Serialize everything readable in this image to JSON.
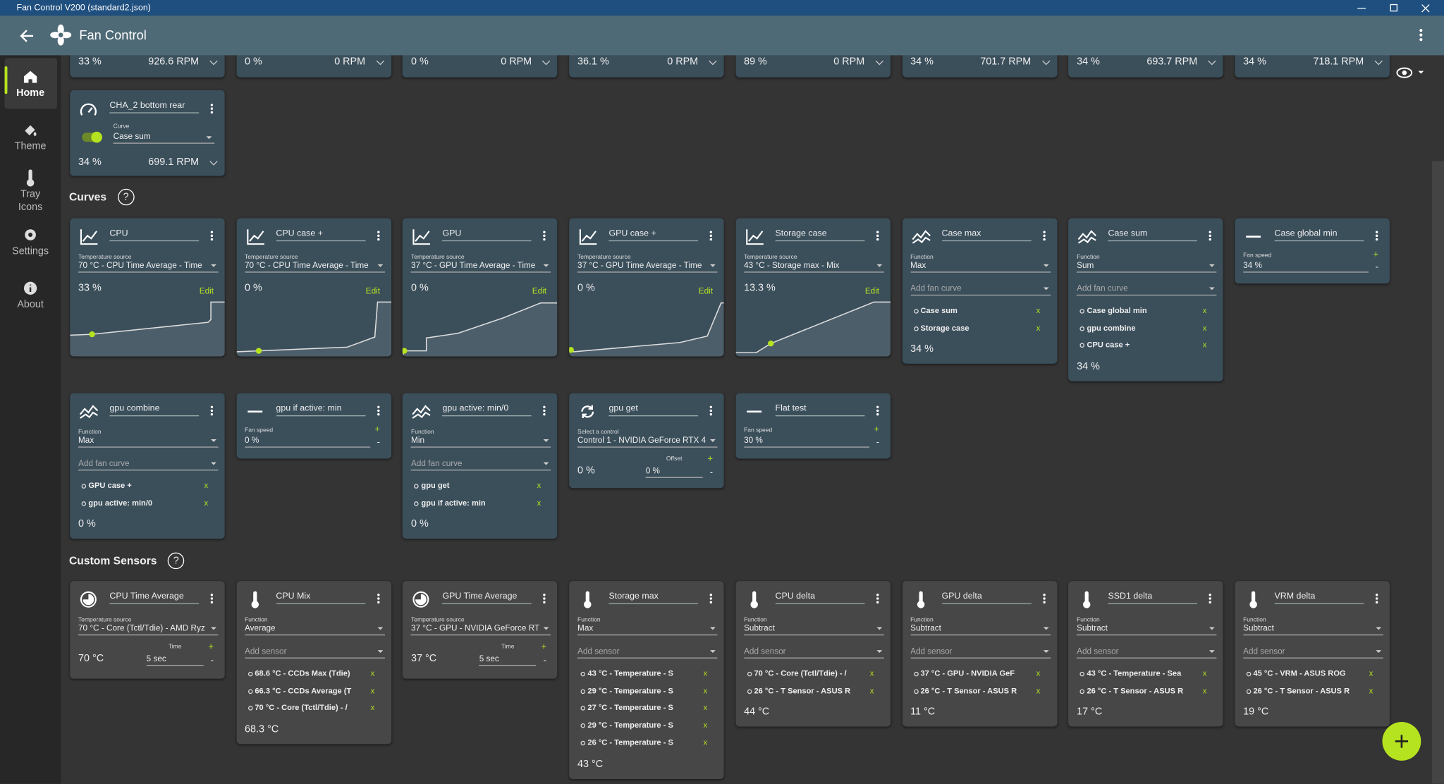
{
  "window": {
    "title": "Fan Control V200 (standard2.json)"
  },
  "header": {
    "title": "Fan Control"
  },
  "nav": {
    "items": [
      "Home",
      "Theme",
      "Tray Icons",
      "Settings",
      "About"
    ]
  },
  "symbols": {
    "help": "?",
    "remove": "x",
    "plus": "+",
    "minus": "-"
  },
  "home": {
    "fans": [
      {
        "percent": "33 %",
        "rpm": "926.6 RPM"
      },
      {
        "percent": "0 %",
        "rpm": "0 RPM"
      },
      {
        "percent": "0 %",
        "rpm": "0 RPM"
      },
      {
        "percent": "36.1 %",
        "rpm": "0 RPM"
      },
      {
        "percent": "89 %",
        "rpm": "0 RPM"
      },
      {
        "percent": "34 %",
        "rpm": "701.7 RPM"
      },
      {
        "percent": "34 %",
        "rpm": "693.7 RPM"
      },
      {
        "percent": "34 %",
        "rpm": "718.1 RPM"
      }
    ],
    "control": {
      "name": "CHA_2 bottom rear",
      "label": "Curve",
      "value": "Case sum",
      "percent": "34 %",
      "rpm": "699.1 RPM"
    }
  },
  "sections": [
    {
      "title": "Curves",
      "cards": [
        {
          "icon": "graph",
          "title": "CPU",
          "label": "Temperature source",
          "value": "70 °C - CPU Time Average - Time",
          "output": "33 %",
          "edit": "Edit"
        },
        {
          "icon": "graph",
          "title": "CPU case +",
          "label": "Temperature source",
          "value": "70 °C - CPU Time Average - Time",
          "output": "0 %",
          "edit": "Edit"
        },
        {
          "icon": "graph",
          "title": "GPU",
          "label": "Temperature source",
          "value": "37 °C - GPU Time Average - Time",
          "output": "0 %",
          "edit": "Edit"
        },
        {
          "icon": "graph",
          "title": "GPU case +",
          "label": "Temperature source",
          "value": "37 °C - GPU Time Average - Time",
          "output": "0 %",
          "edit": "Edit"
        },
        {
          "icon": "graph",
          "title": "Storage case",
          "label": "Temperature source",
          "value": "43 °C - Storage max - Mix",
          "output": "13.3 %",
          "edit": "Edit"
        },
        {
          "icon": "mix",
          "title": "Case max",
          "label": "Function",
          "value": "Max",
          "add": "Add fan curve",
          "items": [
            "Case sum",
            "Storage case"
          ],
          "output": "34 %"
        },
        {
          "icon": "mix",
          "title": "Case sum",
          "label": "Function",
          "value": "Sum",
          "add": "Add fan curve",
          "items": [
            "Case global min",
            "gpu combine",
            "CPU case +"
          ],
          "output": "34 %"
        },
        {
          "icon": "flat",
          "title": "Case global min",
          "label": "Fan speed",
          "value": "34 %"
        },
        {
          "icon": "mix",
          "title": "gpu combine",
          "label": "Function",
          "value": "Max",
          "add": "Add fan curve",
          "items": [
            "GPU case +",
            "gpu active: min/0"
          ],
          "output": "0 %"
        },
        {
          "icon": "flat",
          "title": "gpu if active: min",
          "label": "Fan speed",
          "value": "0 %"
        },
        {
          "icon": "mix",
          "title": "gpu active: min/0",
          "label": "Function",
          "value": "Min",
          "add": "Add fan curve",
          "items": [
            "gpu get",
            "gpu if active: min"
          ],
          "output": "0 %"
        },
        {
          "icon": "sync",
          "title": "gpu get",
          "label": "Select a control",
          "value": "Control 1 - NVIDIA GeForce RTX 4",
          "output": "0 %",
          "sub_label": "Offset",
          "sub_value": "0 %"
        },
        {
          "icon": "flat",
          "title": "Flat test",
          "label": "Fan speed",
          "value": "30 %"
        }
      ]
    },
    {
      "title": "Custom Sensors",
      "cards": [
        {
          "icon": "clock",
          "title": "CPU Time Average",
          "label": "Temperature source",
          "value": "70 °C - Core (Tctl/Tdie) - AMD Ryz",
          "output": "70 °C",
          "sub_label": "Time",
          "sub_value": "5 sec"
        },
        {
          "icon": "thermo",
          "title": "CPU Mix",
          "label": "Function",
          "value": "Average",
          "add": "Add sensor",
          "items": [
            "68.6 °C - CCDs Max (Tdie)",
            "66.3 °C - CCDs Average (T",
            "70 °C - Core (Tctl/Tdie) - /"
          ],
          "output": "68.3 °C"
        },
        {
          "icon": "clock",
          "title": "GPU Time Average",
          "label": "Temperature source",
          "value": "37 °C - GPU - NVIDIA GeForce RT",
          "output": "37 °C",
          "sub_label": "Time",
          "sub_value": "5 sec"
        },
        {
          "icon": "thermo",
          "title": "Storage max",
          "label": "Function",
          "value": "Max",
          "add": "Add sensor",
          "items": [
            "43 °C - Temperature - S",
            "29 °C - Temperature - S",
            "27 °C - Temperature - S",
            "29 °C - Temperature - S",
            "26 °C - Temperature - S"
          ],
          "output": "43 °C"
        },
        {
          "icon": "thermo",
          "title": "CPU delta",
          "label": "Function",
          "value": "Subtract",
          "add": "Add sensor",
          "items": [
            "70 °C - Core (Tctl/Tdie) - /",
            "26 °C - T Sensor - ASUS R"
          ],
          "output": "44 °C"
        },
        {
          "icon": "thermo",
          "title": "GPU delta",
          "label": "Function",
          "value": "Subtract",
          "add": "Add sensor",
          "items": [
            "37 °C - GPU - NVIDIA GeF",
            "26 °C - T Sensor - ASUS R"
          ],
          "output": "11 °C"
        },
        {
          "icon": "thermo",
          "title": "SSD1 delta",
          "label": "Function",
          "value": "Subtract",
          "add": "Add sensor",
          "items": [
            "43 °C - Temperature - Sea",
            "26 °C - T Sensor - ASUS R"
          ],
          "output": "17 °C"
        },
        {
          "icon": "thermo",
          "title": "VRM delta",
          "label": "Function",
          "value": "Subtract",
          "add": "Add sensor",
          "items": [
            "45 °C - VRM - ASUS ROG",
            "26 °C - T Sensor - ASUS R"
          ],
          "output": "19 °C"
        }
      ]
    }
  ]
}
